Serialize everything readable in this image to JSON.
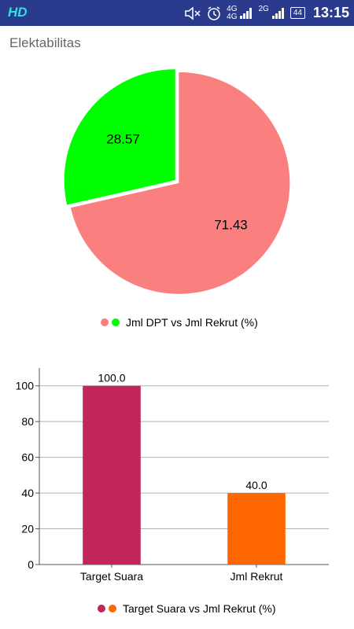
{
  "status_bar": {
    "carrier": "HD",
    "network_1": "4G",
    "network_1_top": "4G",
    "network_2_top": "2G",
    "battery": "44",
    "time": "13:15",
    "icons": [
      "mute-icon",
      "alarm-icon",
      "signal-icon",
      "signal-icon",
      "battery-icon"
    ]
  },
  "section": {
    "title": "Elektabilitas"
  },
  "chart_data": [
    {
      "type": "pie",
      "labels": [
        "Jml DPT",
        "Jml Rekrut"
      ],
      "values": [
        71.43,
        28.57
      ],
      "value_labels": [
        "71.43",
        "28.57"
      ],
      "colors": [
        "#fa8080",
        "#00ff00"
      ],
      "legend": "Jml DPT vs Jml Rekrut (%)",
      "legend_position": "bottom-center"
    },
    {
      "type": "bar",
      "categories": [
        "Target Suara",
        "Jml Rekrut"
      ],
      "values": [
        100.0,
        40.0
      ],
      "value_labels": [
        "100.0",
        "40.0"
      ],
      "colors": [
        "#c2255c",
        "#ff6600"
      ],
      "ylim": [
        0,
        110
      ],
      "yticks": [
        "0",
        "20",
        "40",
        "60",
        "80",
        "100"
      ],
      "legend": "Target Suara vs Jml Rekrut (%)",
      "legend_position": "bottom-center",
      "grid": true
    }
  ]
}
